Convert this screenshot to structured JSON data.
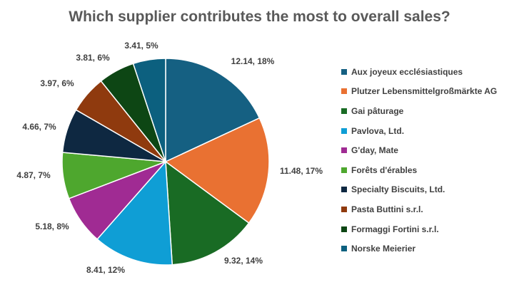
{
  "chart_data": {
    "type": "pie",
    "title": "Which supplier contributes the most to overall sales?",
    "legend_position": "right",
    "slices": [
      {
        "name": "Aux joyeux ecclésiastiques",
        "value": 12.14,
        "percent": "18%",
        "label": "12.14, 18%",
        "color": "#156082"
      },
      {
        "name": "Plutzer Lebensmittelgroßmärkte AG",
        "value": 11.48,
        "percent": "17%",
        "label": "11.48, 17%",
        "color": "#E97132"
      },
      {
        "name": "Gai pâturage",
        "value": 9.32,
        "percent": "14%",
        "label": "9.32, 14%",
        "color": "#196B24"
      },
      {
        "name": "Pavlova, Ltd.",
        "value": 8.41,
        "percent": "12%",
        "label": "8.41, 12%",
        "color": "#0F9ED5"
      },
      {
        "name": "G'day, Mate",
        "value": 5.18,
        "percent": "8%",
        "label": "5.18, 8%",
        "color": "#A02B93"
      },
      {
        "name": "Forêts d'érables",
        "value": 4.87,
        "percent": "7%",
        "label": "4.87, 7%",
        "color": "#4EA72E"
      },
      {
        "name": "Specialty Biscuits, Ltd.",
        "value": 4.66,
        "percent": "7%",
        "label": "4.66, 7%",
        "color": "#0E2841"
      },
      {
        "name": "Pasta Buttini s.r.l.",
        "value": 3.97,
        "percent": "6%",
        "label": "3.97, 6%",
        "color": "#8F3A0E"
      },
      {
        "name": "Formaggi Fortini s.r.l.",
        "value": 3.81,
        "percent": "6%",
        "label": "3.81, 6%",
        "color": "#0D4614"
      },
      {
        "name": "Norske Meierier",
        "value": 3.41,
        "percent": "5%",
        "label": "3.41, 5%",
        "color": "#0C607F"
      }
    ]
  }
}
